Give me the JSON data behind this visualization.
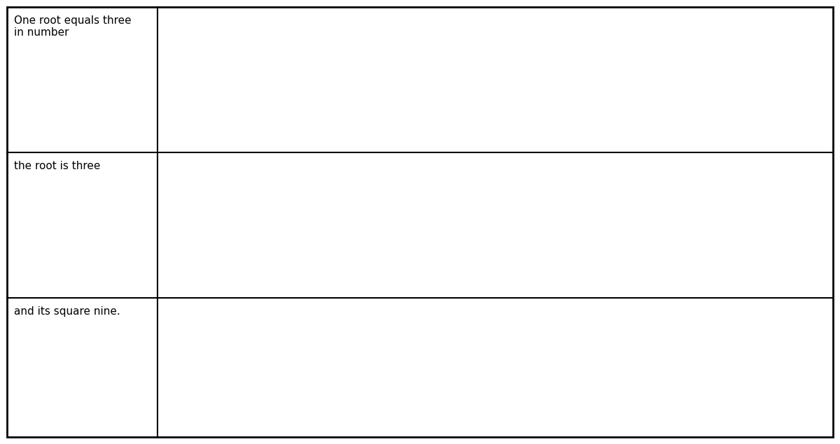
{
  "colors": {
    "green_tile": "#4CAF50",
    "green_dark": "#3d8b40",
    "blue_tile": "#5566EE",
    "yellow_tile": "#FFE833",
    "yellow_border": "#BBAA00",
    "cyan_border": "#55CCFF",
    "red_border": "#FF0000",
    "white": "#FFFFFF",
    "black": "#000000"
  },
  "row_labels": [
    "One root equals three\nin number",
    "the root is three",
    "and its square nine."
  ],
  "fig_width": 12.0,
  "fig_height": 6.35,
  "col_div": 2.25,
  "row_tops": [
    6.25,
    4.17,
    2.09
  ],
  "row_bottoms": [
    4.17,
    2.09,
    0.1
  ]
}
